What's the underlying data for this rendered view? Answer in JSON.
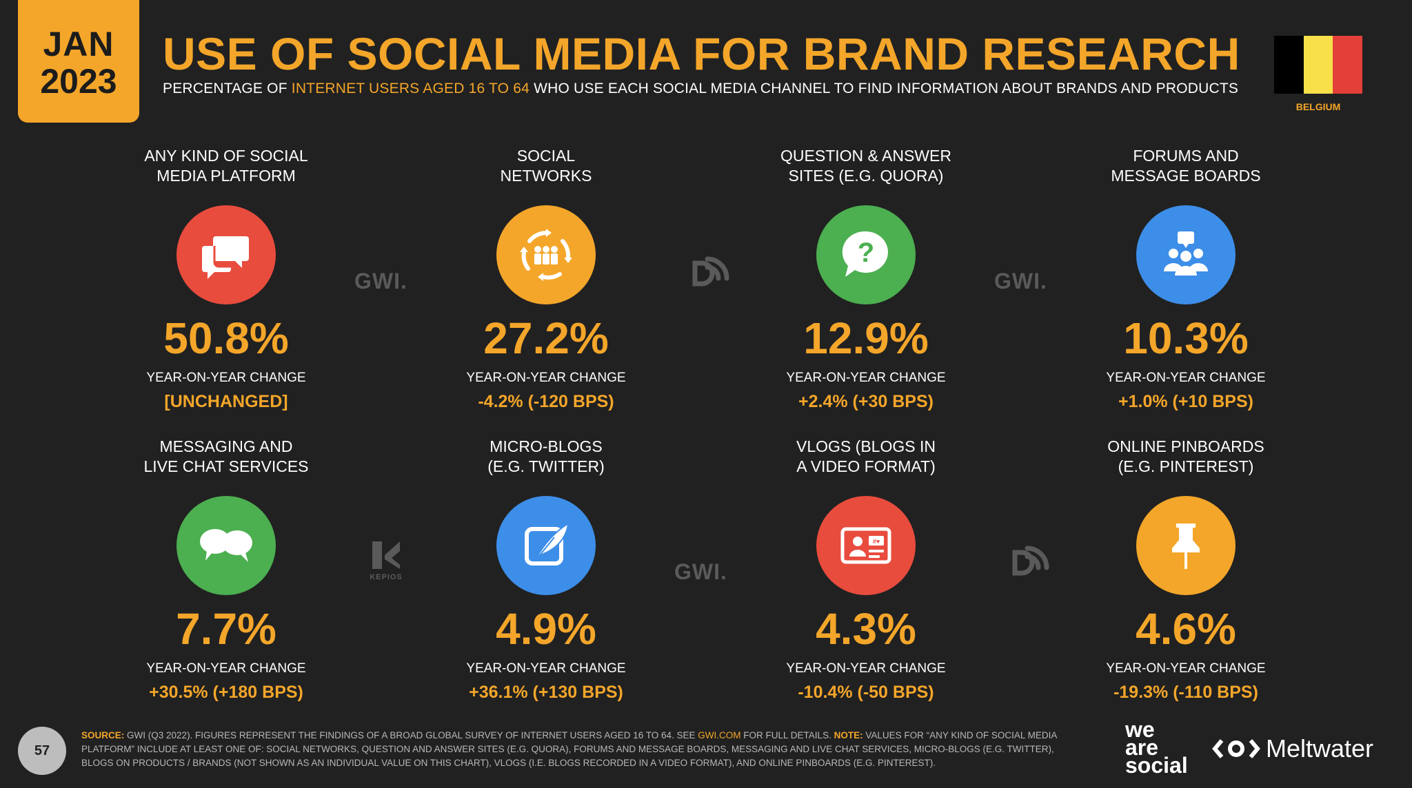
{
  "header": {
    "month": "JAN",
    "year": "2023",
    "title": "USE OF SOCIAL MEDIA FOR BRAND RESEARCH",
    "subtitle_pre": "PERCENTAGE OF",
    "subtitle_highlight": "INTERNET USERS AGED 16 TO 64",
    "subtitle_post": "WHO USE EACH SOCIAL MEDIA CHANNEL TO FIND INFORMATION ABOUT BRANDS AND PRODUCTS",
    "country": "BELGIUM",
    "flag_colors": [
      "#000000",
      "#f7e04a",
      "#e3403a"
    ]
  },
  "items": [
    {
      "label": "ANY KIND OF SOCIAL\nMEDIA PLATFORM",
      "icon": "chat-bubbles-icon",
      "color": "#e84c3d",
      "value": "50.8%",
      "yoy_label": "YEAR-ON-YEAR CHANGE",
      "yoy_value": "[UNCHANGED]"
    },
    {
      "label": "SOCIAL\nNETWORKS",
      "icon": "people-network-icon",
      "color": "#f4a62a",
      "value": "27.2%",
      "yoy_label": "YEAR-ON-YEAR CHANGE",
      "yoy_value": "-4.2% (-120 BPS)"
    },
    {
      "label": "QUESTION & ANSWER\nSITES (E.G. QUORA)",
      "icon": "question-bubble-icon",
      "color": "#4caf50",
      "value": "12.9%",
      "yoy_label": "YEAR-ON-YEAR CHANGE",
      "yoy_value": "+2.4% (+30 BPS)"
    },
    {
      "label": "FORUMS AND\nMESSAGE BOARDS",
      "icon": "group-forum-icon",
      "color": "#3d8ee8",
      "value": "10.3%",
      "yoy_label": "YEAR-ON-YEAR CHANGE",
      "yoy_value": "+1.0% (+10 BPS)"
    },
    {
      "label": "MESSAGING AND\nLIVE CHAT SERVICES",
      "icon": "speech-bubbles-icon",
      "color": "#4caf50",
      "value": "7.7%",
      "yoy_label": "YEAR-ON-YEAR CHANGE",
      "yoy_value": "+30.5% (+180 BPS)"
    },
    {
      "label": "MICRO-BLOGS\n(E.G. TWITTER)",
      "icon": "feather-icon",
      "color": "#3d8ee8",
      "value": "4.9%",
      "yoy_label": "YEAR-ON-YEAR CHANGE",
      "yoy_value": "+36.1% (+130 BPS)"
    },
    {
      "label": "VLOGS (BLOGS IN\nA VIDEO FORMAT)",
      "icon": "video-profile-icon",
      "color": "#e84c3d",
      "value": "4.3%",
      "yoy_label": "YEAR-ON-YEAR CHANGE",
      "yoy_value": "-10.4% (-50 BPS)"
    },
    {
      "label": "ONLINE PINBOARDS\n(E.G. PINTEREST)",
      "icon": "pushpin-icon",
      "color": "#f4a62a",
      "value": "4.6%",
      "yoy_label": "YEAR-ON-YEAR CHANGE",
      "yoy_value": "-19.3% (-110 BPS)"
    }
  ],
  "watermarks": {
    "gwi": "GWI.",
    "kepios": "KEPIOS"
  },
  "footer": {
    "page_number": "57",
    "source_label": "SOURCE:",
    "source_text": "GWI (Q3 2022). FIGURES REPRESENT THE FINDINGS OF A BROAD GLOBAL SURVEY OF INTERNET USERS AGED 16 TO 64. SEE",
    "source_link": "GWI.COM",
    "source_after": "FOR FULL DETAILS.",
    "note_label": "NOTE:",
    "note_text": "VALUES FOR “ANY KIND OF SOCIAL MEDIA PLATFORM” INCLUDE AT LEAST ONE OF: SOCIAL NETWORKS, QUESTION AND ANSWER SITES (E.G. QUORA), FORUMS AND MESSAGE BOARDS, MESSAGING AND LIVE CHAT SERVICES, MICRO-BLOGS (E.G. TWITTER), BLOGS ON PRODUCTS / BRANDS (NOT SHOWN AS AN INDIVIDUAL VALUE ON THIS CHART), VLOGS (I.E. BLOGS RECORDED IN A VIDEO FORMAT), AND ONLINE PINBOARDS (E.G. PINTEREST).",
    "brand1_line1": "we",
    "brand1_line2": "are",
    "brand1_line3": "social",
    "brand2": "Meltwater"
  }
}
